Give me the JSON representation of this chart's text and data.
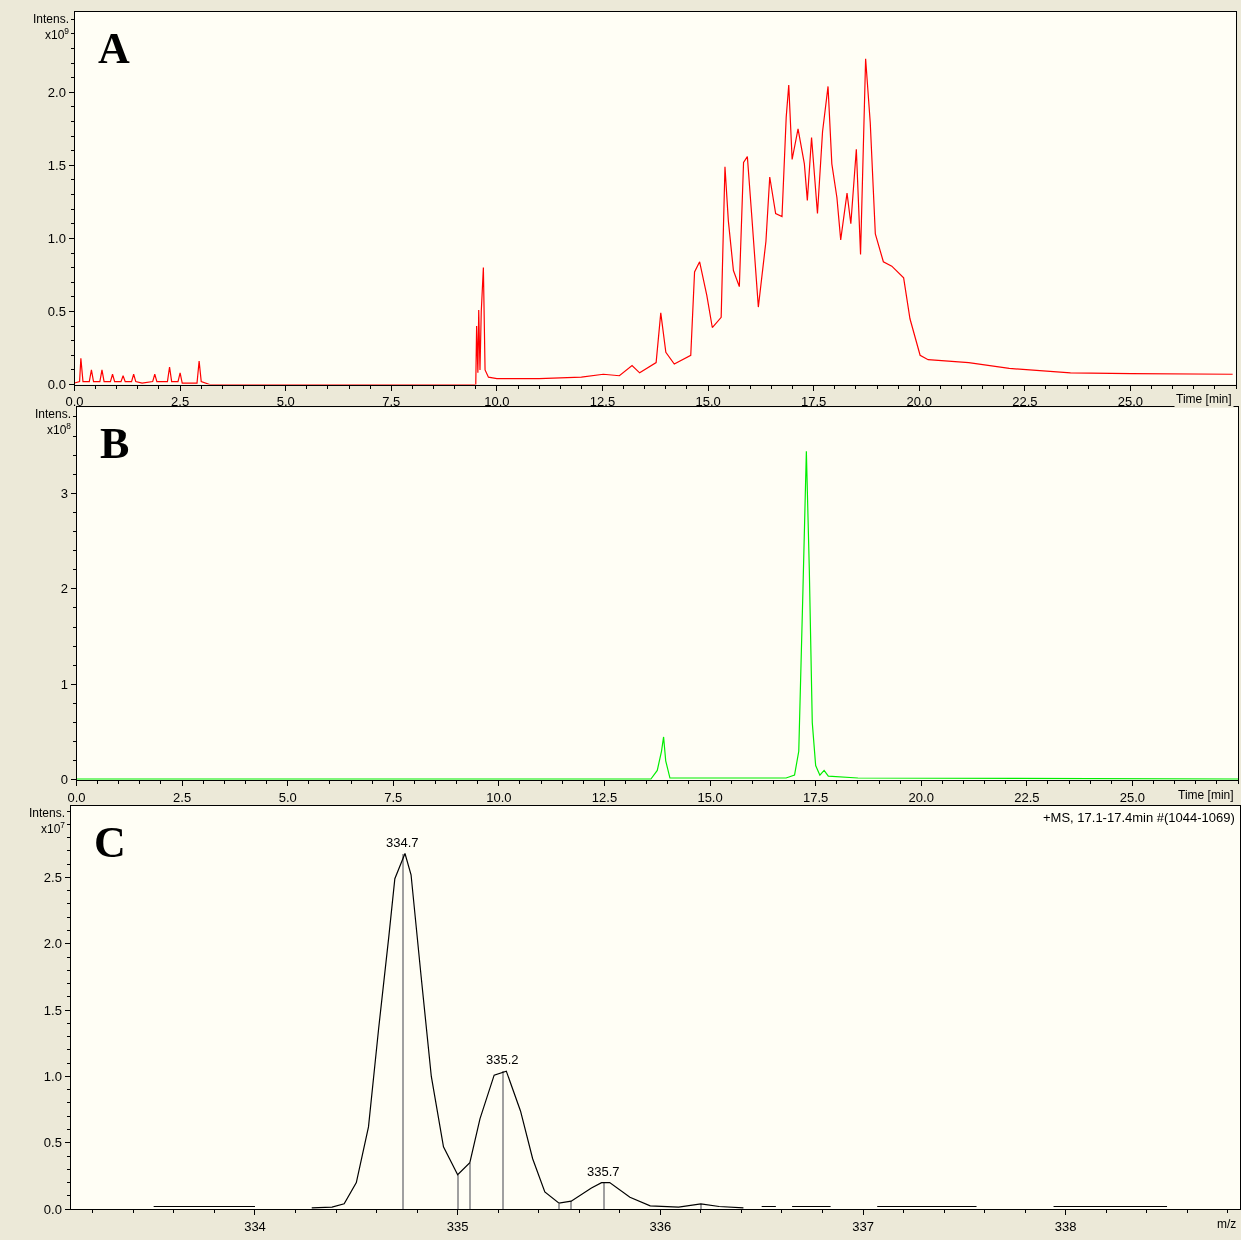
{
  "chart_data": [
    {
      "type": "line",
      "ylabel": "Intens.\nx10$^{9}$",
      "xlabel": "Time [min]",
      "annotations": [
        "A"
      ],
      "xlim": [
        0,
        27.5
      ],
      "ylim": [
        0,
        2.55
      ],
      "xticks": [
        {
          "value": 0,
          "label": "0.0"
        },
        2.5,
        {
          "value": 5,
          "label": "5.0"
        },
        7.5,
        {
          "value": 10,
          "label": "10.0"
        },
        12.5,
        {
          "value": 15,
          "label": "15.0"
        },
        17.5,
        {
          "value": 20,
          "label": "20.0"
        },
        22.5,
        {
          "value": 25,
          "label": "25.0"
        }
      ],
      "yticks": [
        {
          "value": 0,
          "label": "0.0"
        },
        0.5,
        {
          "value": 1,
          "label": "1.0"
        },
        1.5,
        {
          "value": 2,
          "label": "2.0"
        }
      ],
      "series": [
        {
          "color": "#ff0000",
          "x": [
            0.0,
            0.12,
            0.15,
            0.2,
            0.35,
            0.4,
            0.45,
            0.6,
            0.65,
            0.7,
            0.85,
            0.9,
            0.95,
            1.1,
            1.15,
            1.2,
            1.35,
            1.4,
            1.45,
            1.6,
            1.85,
            1.9,
            1.95,
            2.2,
            2.25,
            2.3,
            2.45,
            2.5,
            2.55,
            2.9,
            2.95,
            3.0,
            3.2,
            9.5,
            9.52,
            9.55,
            9.57,
            9.6,
            9.63,
            9.68,
            9.72,
            9.8,
            10.0,
            11.0,
            12.0,
            12.52,
            12.9,
            13.2,
            13.38,
            13.77,
            13.88,
            14.0,
            14.2,
            14.59,
            14.68,
            14.8,
            14.97,
            15.1,
            15.31,
            15.4,
            15.48,
            15.6,
            15.74,
            15.84,
            15.93,
            16.03,
            16.19,
            16.37,
            16.46,
            16.6,
            16.75,
            16.85,
            16.91,
            16.99,
            17.13,
            17.28,
            17.35,
            17.45,
            17.59,
            17.71,
            17.84,
            17.93,
            18.05,
            18.14,
            18.29,
            18.38,
            18.51,
            18.61,
            18.73,
            18.84,
            18.96,
            19.15,
            19.35,
            19.63,
            19.78,
            20.02,
            20.21,
            21.17,
            22.13,
            23.58,
            25.02,
            27.42
          ],
          "values": [
            0.01,
            0.02,
            0.18,
            0.02,
            0.02,
            0.1,
            0.02,
            0.02,
            0.1,
            0.02,
            0.02,
            0.07,
            0.02,
            0.02,
            0.06,
            0.02,
            0.02,
            0.07,
            0.02,
            0.01,
            0.02,
            0.07,
            0.02,
            0.02,
            0.12,
            0.02,
            0.02,
            0.08,
            0.01,
            0.01,
            0.16,
            0.02,
            0.0,
            0.0,
            0.4,
            0.08,
            0.51,
            0.1,
            0.5,
            0.8,
            0.1,
            0.05,
            0.04,
            0.04,
            0.05,
            0.07,
            0.06,
            0.13,
            0.08,
            0.15,
            0.49,
            0.22,
            0.14,
            0.2,
            0.77,
            0.84,
            0.61,
            0.39,
            0.46,
            1.49,
            1.12,
            0.78,
            0.67,
            1.52,
            1.56,
            1.17,
            0.53,
            0.98,
            1.42,
            1.17,
            1.15,
            1.83,
            2.05,
            1.54,
            1.75,
            1.51,
            1.26,
            1.69,
            1.17,
            1.73,
            2.04,
            1.51,
            1.28,
            0.99,
            1.31,
            1.1,
            1.61,
            0.89,
            2.23,
            1.79,
            1.03,
            0.84,
            0.81,
            0.73,
            0.45,
            0.2,
            0.17,
            0.15,
            0.11,
            0.08,
            0.075,
            0.07
          ]
        }
      ]
    },
    {
      "type": "line",
      "ylabel": "Intens.\nx10$^{8}$",
      "xlabel": "Time [min]",
      "annotations": [
        "B"
      ],
      "xlim": [
        0,
        27.5
      ],
      "ylim": [
        0,
        3.9
      ],
      "xticks": [
        {
          "value": 0,
          "label": "0.0"
        },
        2.5,
        {
          "value": 5,
          "label": "5.0"
        },
        7.5,
        {
          "value": 10,
          "label": "10.0"
        },
        12.5,
        {
          "value": 15,
          "label": "15.0"
        },
        17.5,
        {
          "value": 20,
          "label": "20.0"
        },
        22.5,
        {
          "value": 25,
          "label": "25.0"
        }
      ],
      "yticks": [
        0,
        1,
        2,
        3
      ],
      "series": [
        {
          "color": "#00ee00",
          "x": [
            0,
            13.6,
            13.75,
            13.85,
            13.9,
            13.95,
            14.05,
            15.0,
            16.8,
            17.0,
            17.1,
            17.2,
            17.28,
            17.35,
            17.42,
            17.5,
            17.6,
            17.7,
            17.8,
            18.5,
            27.5
          ],
          "values": [
            0.01,
            0.01,
            0.1,
            0.3,
            0.45,
            0.2,
            0.02,
            0.02,
            0.02,
            0.05,
            0.3,
            2.0,
            3.44,
            2.2,
            0.6,
            0.15,
            0.05,
            0.1,
            0.04,
            0.02,
            0.01
          ]
        }
      ]
    },
    {
      "type": "line",
      "ylabel": "Intens.\nx10$^{7}$",
      "xlabel": "m/z",
      "annotations": [
        "C",
        "+MS, 17.1-17.4min #(1044-1069)",
        {
          "text": "334.7",
          "x": 334.73,
          "y": 2.68
        },
        {
          "text": "335.2",
          "x": 335.22,
          "y": 1.04
        },
        {
          "text": "335.7",
          "x": 335.72,
          "y": 0.2
        }
      ],
      "xlim": [
        333.09,
        338.86
      ],
      "ylim": [
        0,
        3.04
      ],
      "xticks": [
        334,
        335,
        336,
        337,
        338
      ],
      "yticks": [
        {
          "value": 0,
          "label": "0.0"
        },
        0.5,
        {
          "value": 1,
          "label": "1.0"
        },
        1.5,
        {
          "value": 2,
          "label": "2.0"
        },
        2.5
      ],
      "series": [
        {
          "color": "#000000",
          "x": [
            333.5,
            334.0,
            334.1,
            334.28,
            334.38,
            334.44,
            334.5,
            334.56,
            334.61,
            334.66,
            334.69,
            334.74,
            334.77,
            334.82,
            334.87,
            334.93,
            335.0,
            335.06,
            335.11,
            335.18,
            335.24,
            335.31,
            335.37,
            335.43,
            335.5,
            335.56,
            335.66,
            335.71,
            335.75,
            335.85,
            335.95,
            336.09,
            336.2,
            336.29,
            336.41,
            336.45,
            336.5,
            336.57,
            336.6,
            336.65,
            336.84,
            336.9,
            337.07,
            337.56,
            337.7,
            337.94,
            338.5
          ],
          "values": [
            0.02,
            0.02,
            null,
            0.01,
            0.015,
            0.04,
            0.2,
            0.62,
            1.36,
            2.05,
            2.49,
            2.68,
            2.52,
            1.75,
            1.0,
            0.47,
            0.26,
            0.35,
            0.68,
            1.01,
            1.04,
            0.74,
            0.38,
            0.13,
            0.045,
            0.06,
            0.16,
            0.2,
            0.2,
            0.09,
            0.025,
            0.015,
            0.04,
            0.02,
            0.01,
            null,
            0.02,
            0.02,
            null,
            0.02,
            0.02,
            null,
            0.02,
            0.02,
            null,
            0.02,
            0.02
          ]
        },
        {
          "type": "bar",
          "color": "#a0a0a0",
          "x": [
            334.73,
            335.0,
            335.06,
            335.22,
            335.5,
            335.56,
            335.72,
            336.2
          ],
          "values": [
            2.68,
            0.26,
            0.35,
            1.04,
            0.04,
            0.06,
            0.2,
            0.04
          ]
        }
      ]
    }
  ]
}
